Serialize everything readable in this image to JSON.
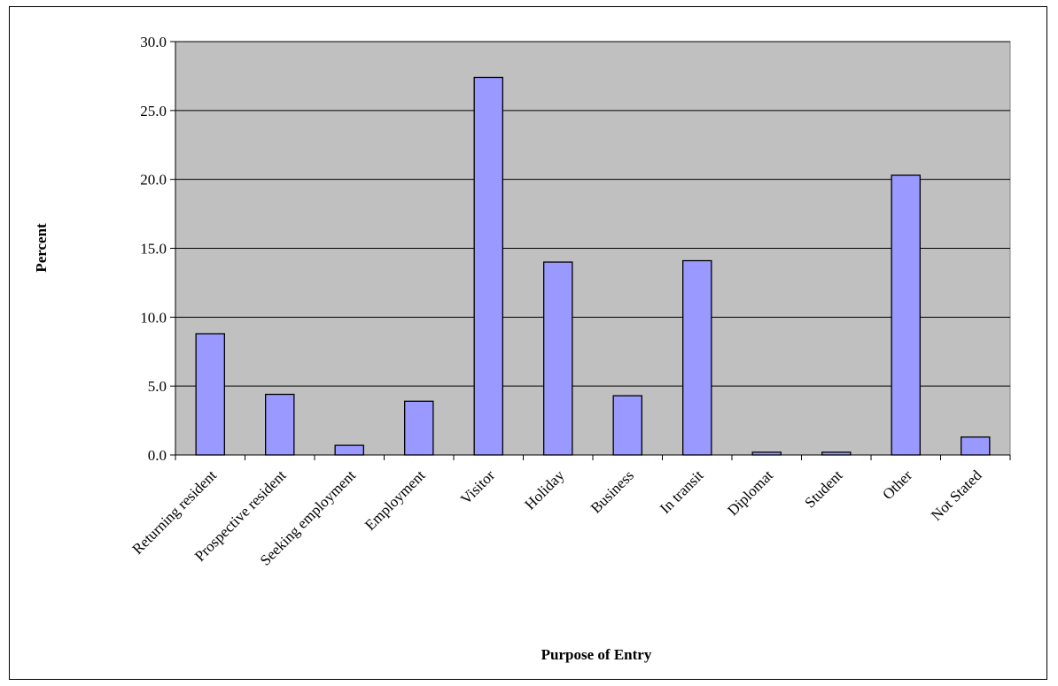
{
  "chart_data": {
    "type": "bar",
    "title": "",
    "xlabel": "Purpose of Entry",
    "ylabel": "Percent",
    "categories": [
      "Returning resident",
      "Prospective resident",
      "Seeking employment",
      "Employment",
      "Visitor",
      "Holiday",
      "Business",
      "In transit",
      "Diplomat",
      "Student",
      "Other",
      "Not Stated"
    ],
    "values": [
      8.8,
      4.4,
      0.7,
      3.9,
      27.4,
      14.0,
      4.3,
      14.1,
      0.2,
      0.2,
      20.3,
      1.3
    ],
    "ylim": [
      0,
      30
    ],
    "yticks": [
      "0.0",
      "5.0",
      "10.0",
      "15.0",
      "20.0",
      "25.0",
      "30.0"
    ],
    "grid": true,
    "legend": "none",
    "colors": {
      "bar_fill": "#9999FF",
      "bar_stroke": "#000000",
      "plot_background": "#C0C0C0",
      "gridline": "#000000"
    }
  }
}
